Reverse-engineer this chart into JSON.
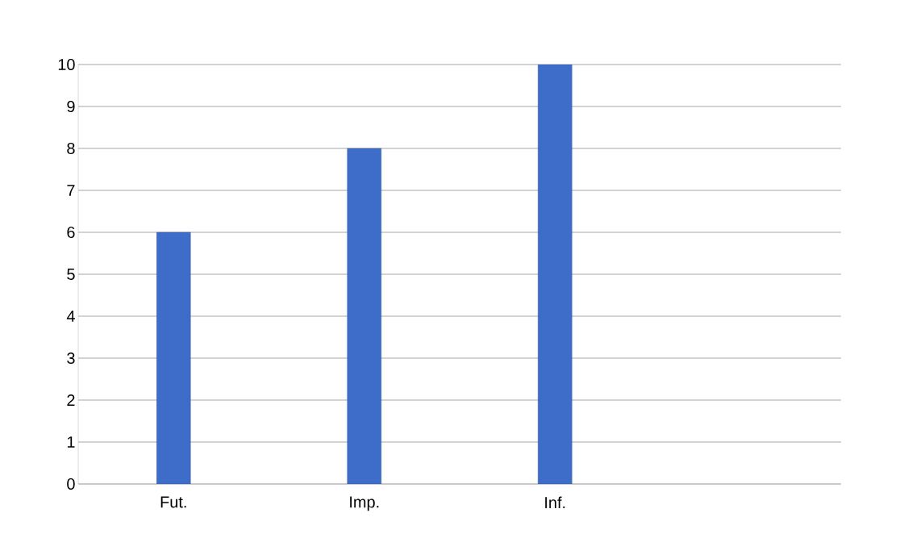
{
  "chart_data": {
    "type": "bar",
    "categories": [
      "Fut.",
      "Imp.",
      "Inf.",
      null
    ],
    "values": [
      6,
      8,
      10,
      null
    ],
    "color": "#3d6cc9",
    "ylim": [
      0,
      10
    ],
    "yticks": [
      0,
      1,
      2,
      3,
      4,
      5,
      6,
      7,
      8,
      9,
      10
    ],
    "grid": "y"
  }
}
